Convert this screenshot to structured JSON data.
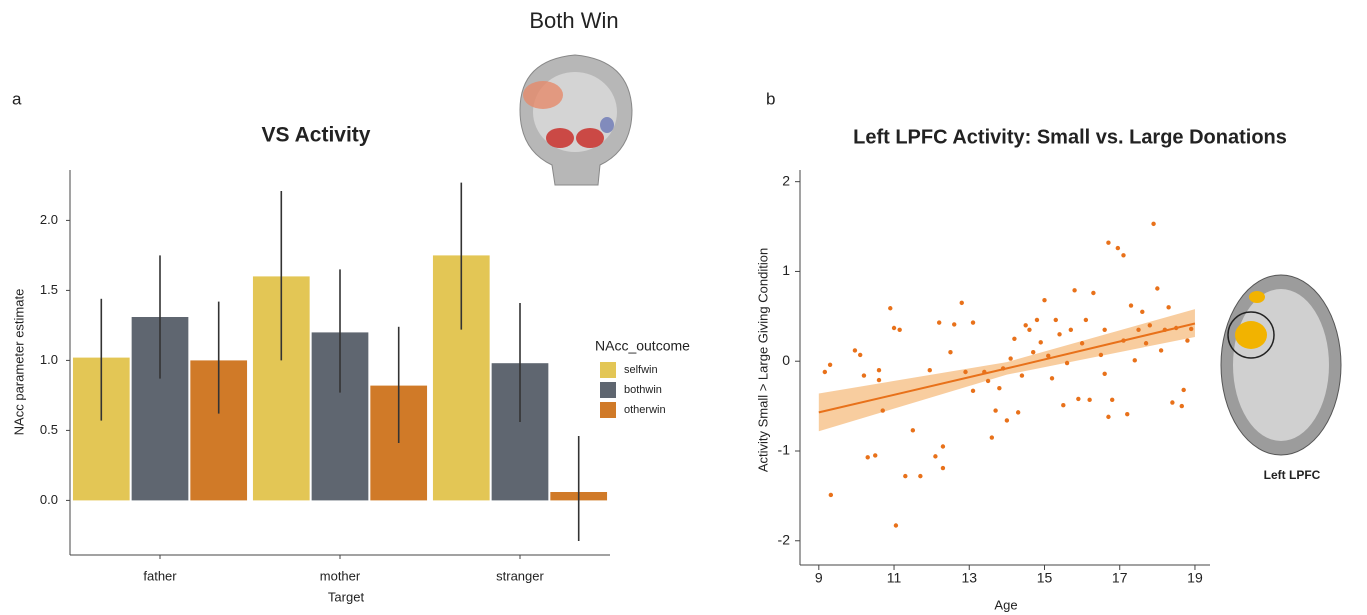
{
  "chart_data": [
    {
      "type": "bar",
      "panel_label": "a",
      "inset_title": "Both Win",
      "title": "VS Activity",
      "x_label": "Target",
      "y_label": "NAcc parameter estimate",
      "legend_title": "NAcc_outcome",
      "categories": [
        "father",
        "mother",
        "stranger"
      ],
      "series": [
        {
          "name": "selfwin",
          "color": "#e3c655",
          "values": [
            1.02,
            1.6,
            1.75
          ],
          "error_low": [
            0.57,
            1.0,
            1.22
          ],
          "error_high": [
            1.44,
            2.21,
            2.27
          ]
        },
        {
          "name": "bothwin",
          "color": "#5f6670",
          "values": [
            1.31,
            1.2,
            0.98
          ],
          "error_low": [
            0.87,
            0.77,
            0.56
          ],
          "error_high": [
            1.75,
            1.65,
            1.41
          ]
        },
        {
          "name": "otherwin",
          "color": "#d07a28",
          "values": [
            1.0,
            0.82,
            0.06
          ],
          "error_low": [
            0.62,
            0.41,
            -0.29
          ],
          "error_high": [
            1.42,
            1.24,
            0.46
          ]
        }
      ],
      "ylim": [
        -0.39,
        2.36
      ],
      "yticks": [
        {
          "value": 0,
          "label": "0.0"
        },
        {
          "value": 0.5,
          "label": "0.5"
        },
        {
          "value": 1,
          "label": "1.0"
        },
        {
          "value": 1.5,
          "label": "1.5"
        },
        {
          "value": 2,
          "label": "2.0"
        }
      ]
    },
    {
      "type": "scatter",
      "panel_label": "b",
      "title": "Left LPFC Activity: Small vs. Large Donations",
      "x_label": "Age",
      "y_label": "Activity Small > Large Giving Condition",
      "inset_label": "Left LPFC",
      "color": "#e8711a",
      "band_color": "#f7c48e",
      "x": [
        9.16,
        9.3,
        9.32,
        9.96,
        10.1,
        10.2,
        10.3,
        10.5,
        10.6,
        10.6,
        10.7,
        10.9,
        11.0,
        11.05,
        11.15,
        11.3,
        11.5,
        11.7,
        11.95,
        12.1,
        12.2,
        12.3,
        12.3,
        12.5,
        12.6,
        12.8,
        12.9,
        13.1,
        13.1,
        13.4,
        13.5,
        13.6,
        13.7,
        13.8,
        13.9,
        14.0,
        14.1,
        14.2,
        14.3,
        14.4,
        14.5,
        14.6,
        14.7,
        14.8,
        14.9,
        15.0,
        15.1,
        15.2,
        15.3,
        15.4,
        15.5,
        15.6,
        15.7,
        15.8,
        15.9,
        16.0,
        16.1,
        16.2,
        16.3,
        16.5,
        16.6,
        16.6,
        16.7,
        16.7,
        16.8,
        16.95,
        17.1,
        17.1,
        17.2,
        17.3,
        17.4,
        17.5,
        17.6,
        17.7,
        17.8,
        17.9,
        18.0,
        18.1,
        18.2,
        18.3,
        18.4,
        18.5,
        18.65,
        18.7,
        18.8,
        18.9
      ],
      "y": [
        -0.12,
        -0.04,
        -1.49,
        0.12,
        0.07,
        -0.16,
        -1.07,
        -1.05,
        -0.1,
        -0.21,
        -0.55,
        0.59,
        0.37,
        -1.83,
        0.35,
        -1.28,
        -0.77,
        -1.28,
        -0.1,
        -1.06,
        0.43,
        -1.19,
        -0.95,
        0.1,
        0.41,
        0.65,
        -0.12,
        -0.33,
        0.43,
        -0.12,
        -0.22,
        -0.85,
        -0.55,
        -0.3,
        -0.08,
        -0.66,
        0.03,
        0.25,
        -0.57,
        -0.16,
        0.4,
        0.35,
        0.1,
        0.46,
        0.21,
        0.68,
        0.06,
        -0.19,
        0.46,
        0.3,
        -0.49,
        -0.02,
        0.35,
        0.79,
        -0.42,
        0.2,
        0.46,
        -0.43,
        0.76,
        0.07,
        -0.14,
        0.35,
        1.32,
        -0.62,
        -0.43,
        1.26,
        0.23,
        1.18,
        -0.59,
        0.62,
        0.01,
        0.35,
        0.55,
        0.2,
        0.4,
        1.53,
        0.81,
        0.12,
        0.35,
        0.6,
        -0.46,
        0.37,
        -0.5,
        -0.32,
        0.23,
        0.36
      ],
      "fit": {
        "x": [
          9,
          14,
          19
        ],
        "y": [
          -0.57,
          -0.08,
          0.42
        ],
        "lower": [
          -0.78,
          -0.15,
          0.27
        ],
        "upper": [
          -0.36,
          -0.01,
          0.58
        ]
      },
      "xlim": [
        8.5,
        19.4
      ],
      "ylim": [
        -2.27,
        2.13
      ],
      "xticks": [
        9,
        11,
        13,
        15,
        17,
        19
      ],
      "yticks": [
        -2,
        -1,
        0,
        1,
        2
      ]
    }
  ]
}
